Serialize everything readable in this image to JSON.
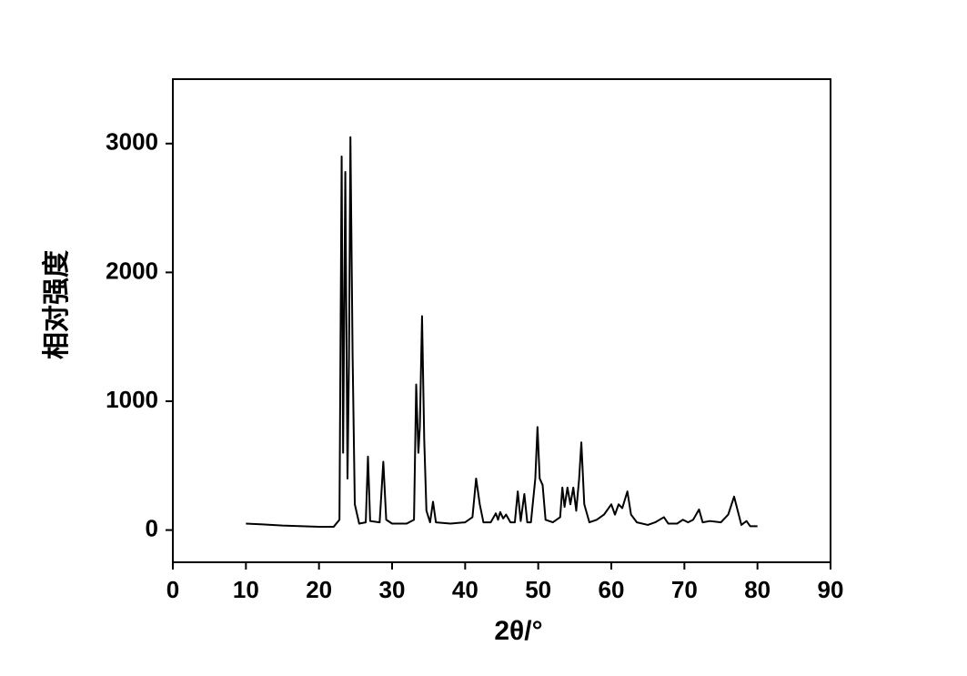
{
  "chart_data": {
    "type": "line",
    "xlabel": "2θ/°",
    "ylabel": "相对强度",
    "xlim": [
      0,
      90
    ],
    "xticks": [
      0,
      10,
      20,
      30,
      40,
      50,
      60,
      70,
      80,
      90
    ],
    "ylim": [
      -250,
      3500
    ],
    "yticks": [
      0,
      1000,
      2000,
      3000
    ],
    "series": [
      {
        "color": "#000000",
        "x": [
          10,
          12,
          15,
          20,
          22,
          22.8,
          23.1,
          23.3,
          23.6,
          23.9,
          24.1,
          24.3,
          24.6,
          24.9,
          25.5,
          26.4,
          26.7,
          27.0,
          28.3,
          28.8,
          29.2,
          30,
          32,
          33,
          33.3,
          33.6,
          33.8,
          34.1,
          34.4,
          34.7,
          35.2,
          35.6,
          36,
          38,
          40,
          41,
          41.5,
          42,
          42.5,
          43.5,
          44.2,
          44.5,
          44.8,
          45.2,
          45.6,
          46.2,
          46.8,
          47.2,
          47.6,
          48.1,
          48.5,
          49,
          49.6,
          49.9,
          50.2,
          50.6,
          51,
          52,
          53,
          53.3,
          53.6,
          54,
          54.4,
          54.8,
          55.2,
          55.6,
          55.9,
          56.3,
          57,
          58,
          59,
          60,
          60.5,
          61,
          61.5,
          62.2,
          62.7,
          63.5,
          65,
          66,
          67.2,
          67.8,
          69,
          69.8,
          70.5,
          71.2,
          72,
          72.5,
          73.5,
          75,
          76,
          76.8,
          77.3,
          77.8,
          78.5,
          79,
          80
        ],
        "values": [
          50,
          45,
          35,
          25,
          25,
          80,
          2900,
          600,
          2780,
          400,
          1300,
          3050,
          1350,
          200,
          50,
          60,
          570,
          70,
          60,
          530,
          80,
          50,
          50,
          80,
          1130,
          600,
          800,
          1660,
          700,
          150,
          60,
          220,
          60,
          50,
          60,
          100,
          400,
          200,
          60,
          60,
          130,
          80,
          140,
          90,
          120,
          60,
          60,
          300,
          70,
          280,
          60,
          60,
          400,
          800,
          400,
          350,
          80,
          60,
          100,
          330,
          180,
          330,
          200,
          330,
          150,
          400,
          680,
          200,
          60,
          80,
          120,
          200,
          120,
          200,
          170,
          300,
          120,
          60,
          40,
          60,
          100,
          50,
          50,
          80,
          60,
          80,
          160,
          60,
          70,
          60,
          120,
          260,
          150,
          40,
          70,
          30,
          30
        ]
      }
    ]
  }
}
